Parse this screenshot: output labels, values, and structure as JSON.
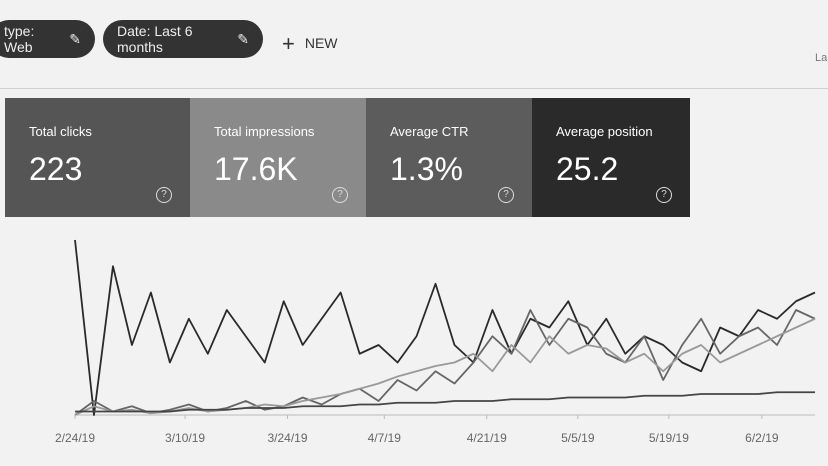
{
  "filters": {
    "chips": [
      "type: Web",
      "Date: Last 6 months"
    ],
    "new_button": "NEW",
    "right_cut": "La"
  },
  "metrics": [
    {
      "label": "Total clicks",
      "value": "223"
    },
    {
      "label": "Total impressions",
      "value": "17.6K"
    },
    {
      "label": "Average CTR",
      "value": "1.3%"
    },
    {
      "label": "Average position",
      "value": "25.2"
    }
  ],
  "chart_data": {
    "type": "line",
    "xlim": [
      0,
      39
    ],
    "ylim": [
      0,
      100
    ],
    "xticks": [
      {
        "value": 0,
        "label": "2/24/19"
      },
      {
        "value": 5.8,
        "label": "3/10/19"
      },
      {
        "value": 11.2,
        "label": "3/24/19"
      },
      {
        "value": 16.3,
        "label": "4/7/19"
      },
      {
        "value": 21.7,
        "label": "4/21/19"
      },
      {
        "value": 26.5,
        "label": "5/5/19"
      },
      {
        "value": 31.3,
        "label": "5/19/19"
      },
      {
        "value": 36.2,
        "label": "6/2/19"
      }
    ],
    "series": [
      {
        "color": "#2a2a2a",
        "values": [
          100,
          0,
          85,
          40,
          70,
          30,
          55,
          35,
          60,
          45,
          30,
          65,
          40,
          55,
          70,
          35,
          40,
          30,
          45,
          75,
          40,
          30,
          60,
          35,
          55,
          50,
          65,
          40,
          55,
          35,
          45,
          40,
          30,
          25,
          50,
          45,
          60,
          55,
          65,
          70
        ]
      },
      {
        "color": "#666666",
        "values": [
          0,
          8,
          2,
          5,
          1,
          3,
          6,
          2,
          4,
          8,
          3,
          5,
          10,
          6,
          12,
          15,
          8,
          20,
          14,
          25,
          18,
          30,
          45,
          35,
          60,
          40,
          55,
          50,
          35,
          30,
          45,
          20,
          40,
          55,
          35,
          45,
          50,
          40,
          60,
          55
        ]
      },
      {
        "color": "#999999",
        "values": [
          0,
          5,
          2,
          3,
          1,
          2,
          4,
          2,
          3,
          4,
          6,
          5,
          8,
          10,
          12,
          15,
          18,
          22,
          25,
          28,
          30,
          35,
          25,
          40,
          30,
          45,
          35,
          40,
          38,
          30,
          35,
          25,
          35,
          40,
          30,
          35,
          40,
          45,
          50,
          55
        ]
      },
      {
        "color": "#444444",
        "values": [
          2,
          2,
          2,
          2,
          2,
          2,
          3,
          3,
          3,
          4,
          4,
          4,
          5,
          5,
          5,
          6,
          6,
          7,
          7,
          7,
          8,
          8,
          8,
          9,
          9,
          9,
          10,
          10,
          10,
          10,
          11,
          11,
          11,
          12,
          12,
          12,
          12,
          13,
          13,
          13
        ]
      }
    ]
  }
}
